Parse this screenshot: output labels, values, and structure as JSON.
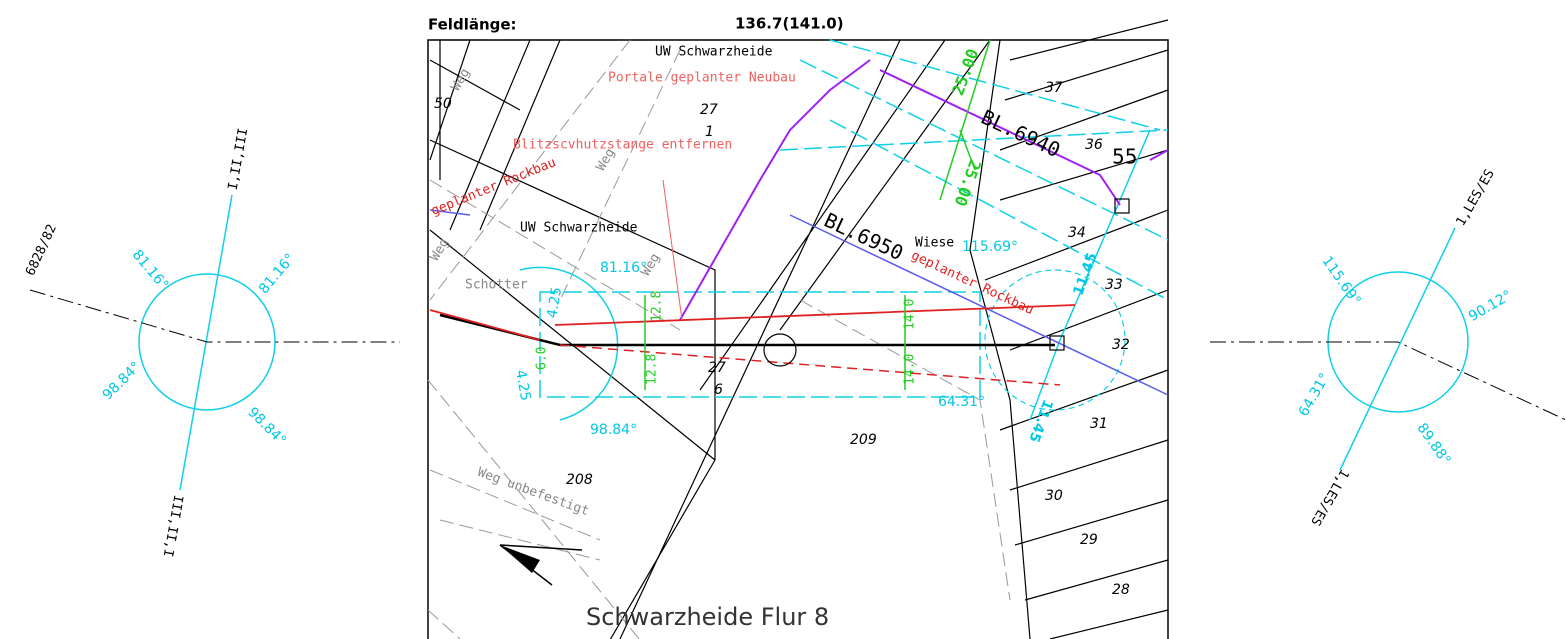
{
  "header": {
    "field_length_label": "Feldlänge:",
    "field_length_value": "136.7(141.0)"
  },
  "left_symbol": {
    "line_label": "6828/82",
    "top_label": "I,II,III",
    "bottom_label": "III,II,I",
    "angles": [
      "81.16°",
      "81.16°",
      "98.84°",
      "98.84°"
    ]
  },
  "right_symbol": {
    "top_label": "1,LES/ES",
    "bottom_label": "1,LES/ES",
    "angles": [
      "115.69°",
      "90.12°",
      "64.31°",
      "89.88°"
    ]
  },
  "plan": {
    "labels": [
      "UW Schwarzheide",
      "Portale geplanter Neubau",
      "27",
      "1",
      "Blitzscvhutzstange entfernen",
      "geplanter Rockbau",
      "UW Schwarzheide",
      "Schotter",
      "81.16°",
      "4.25",
      "4.25",
      "12.8",
      "6.0",
      "12.8",
      "27",
      "6",
      "98.84°",
      "208",
      "Weg unbefestigt",
      "Schwarzheide Flur 8",
      "209",
      "Wiese",
      "115.69°",
      "BL.6950",
      "geplanter Rockbau",
      "BL.6940",
      "25.00",
      "25.00",
      "14.0",
      "14.0",
      "64.31°",
      "11.45",
      "11.45",
      "50",
      "Weg",
      "Weg",
      "Weg",
      "Weg"
    ],
    "parcels": [
      "37",
      "36",
      "55",
      "34",
      "33",
      "32",
      "31",
      "30",
      "29",
      "28"
    ]
  }
}
